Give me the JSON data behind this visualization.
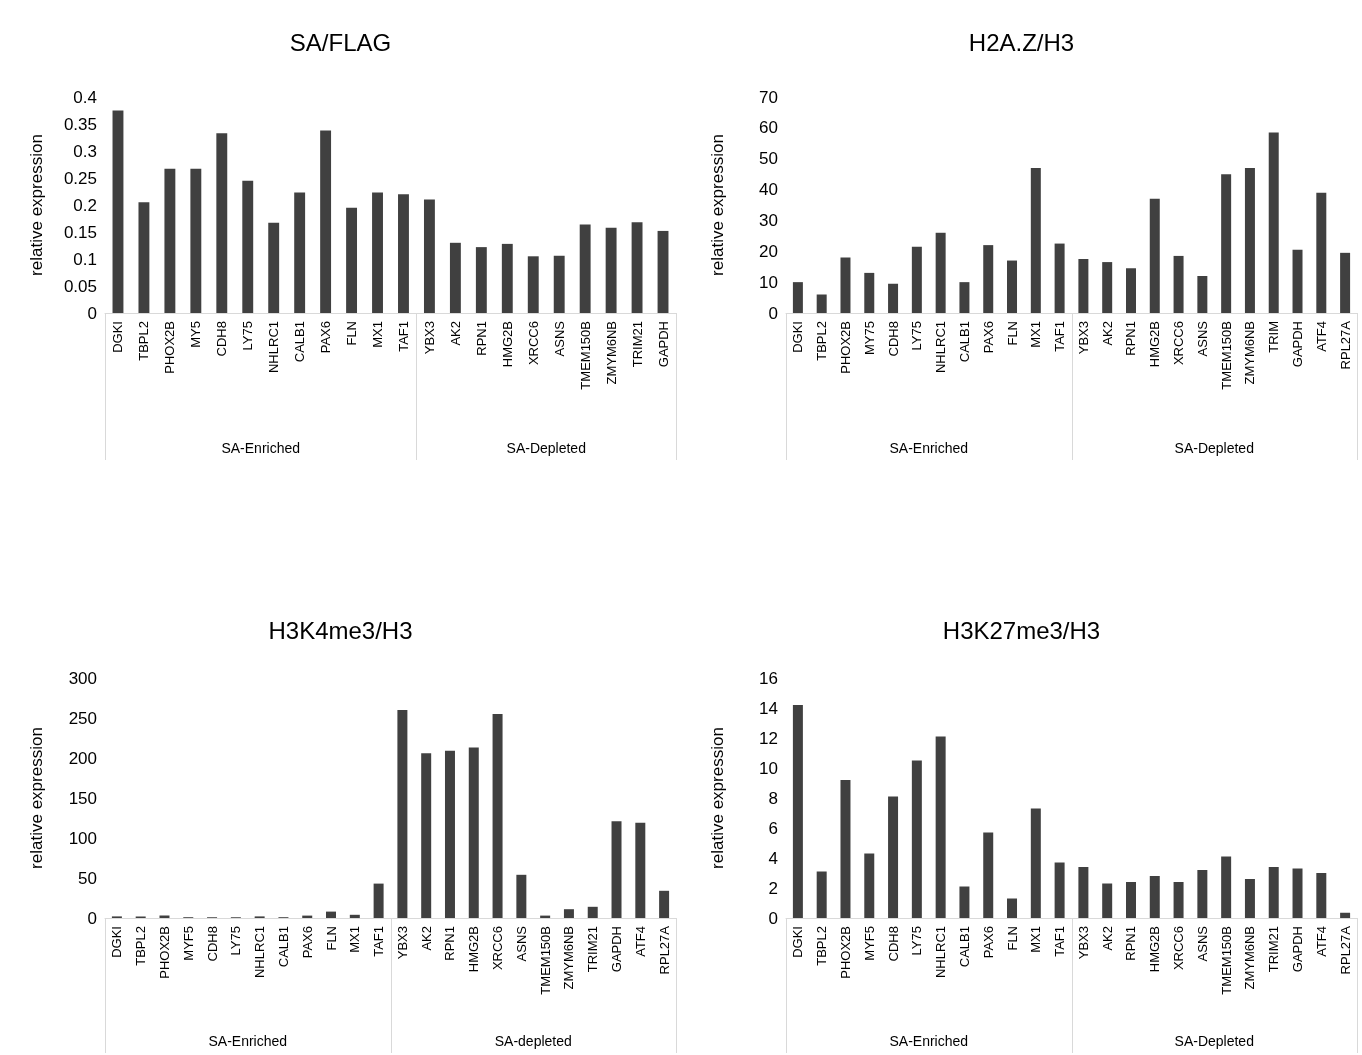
{
  "chart_data": [
    {
      "type": "bar",
      "title": "SA/FLAG",
      "ylabel": "relative expression",
      "categories": [
        "DGKI",
        "TBPL2",
        "PHOX2B",
        "MY5",
        "CDH8",
        "LY75",
        "NHLRC1",
        "CALB1",
        "PAX6",
        "FLN",
        "MX1",
        "TAF1",
        "YBX3",
        "AK2",
        "RPN1",
        "HMG2B",
        "XRCC6",
        "ASNS",
        "TMEM150B",
        "ZMYM6NB",
        "TRIM21",
        "GAPDH"
      ],
      "values": [
        0.375,
        0.205,
        0.267,
        0.267,
        0.333,
        0.245,
        0.167,
        0.223,
        0.338,
        0.195,
        0.223,
        0.22,
        0.21,
        0.13,
        0.122,
        0.128,
        0.105,
        0.106,
        0.164,
        0.158,
        0.168,
        0.152
      ],
      "color": "#404040",
      "ylim": [
        0,
        0.4
      ],
      "yticks": [
        0,
        0.05,
        0.1,
        0.15,
        0.2,
        0.25,
        0.3,
        0.35,
        0.4
      ],
      "grid": false,
      "annotations": [
        "SA-Enriched",
        "SA-Depleted"
      ]
    },
    {
      "type": "bar",
      "title": "H2A.Z/H3",
      "ylabel": "relative expression",
      "categories": [
        "DGKI",
        "TBPL2",
        "PHOX2B",
        "MY75",
        "CDH8",
        "LY75",
        "NHLRC1",
        "CALB1",
        "PAX6",
        "FLN",
        "MX1",
        "TAF1",
        "YBX3",
        "AK2",
        "RPN1",
        "HMG2B",
        "XRCC6",
        "ASNS",
        "TMEM150B",
        "ZMYM6NB",
        "TRIM",
        "GAPDH",
        "ATF4",
        "RPL27A"
      ],
      "values": [
        10,
        6,
        18,
        13,
        9.5,
        21.5,
        26,
        10,
        22,
        17,
        47,
        22.5,
        17.5,
        16.5,
        14.5,
        37,
        18.5,
        12,
        45,
        47,
        58.5,
        20.5,
        39,
        19.5
      ],
      "color": "#404040",
      "ylim": [
        0,
        70
      ],
      "yticks": [
        0,
        10,
        20,
        30,
        40,
        50,
        60,
        70
      ],
      "grid": false,
      "annotations": [
        "SA-Enriched",
        "SA-Depleted"
      ]
    },
    {
      "type": "bar",
      "title": "H3K4me3/H3",
      "ylabel": "relative expression",
      "categories": [
        "DGKI",
        "TBPL2",
        "PHOX2B",
        "MYF5",
        "CDH8",
        "LY75",
        "NHLRC1",
        "CALB1",
        "PAX6",
        "FLN",
        "MX1",
        "TAF1",
        "YBX3",
        "AK2",
        "RPN1",
        "HMG2B",
        "XRCC6",
        "ASNS",
        "TMEM150B",
        "ZMYM6NB",
        "TRIM21",
        "GAPDH",
        "ATF4",
        "RPL27A"
      ],
      "values": [
        2,
        2,
        3,
        1,
        1,
        1,
        2,
        1,
        3,
        8,
        4,
        43,
        260,
        206,
        209,
        213,
        255,
        54,
        3,
        11,
        14,
        121,
        119,
        34
      ],
      "color": "#404040",
      "ylim": [
        0,
        300
      ],
      "yticks": [
        0,
        50,
        100,
        150,
        200,
        250,
        300
      ],
      "grid": false,
      "annotations": [
        "SA-Enriched",
        "SA-depleted"
      ]
    },
    {
      "type": "bar",
      "title": "H3K27me3/H3",
      "ylabel": "relative expression",
      "categories": [
        "DGKI",
        "TBPL2",
        "PHOX2B",
        "MYF5",
        "CDH8",
        "LY75",
        "NHLRC1",
        "CALB1",
        "PAX6",
        "FLN",
        "MX1",
        "TAF1",
        "YBX3",
        "AK2",
        "RPN1",
        "HMG2B",
        "XRCC6",
        "ASNS",
        "TMEM150B",
        "ZMYM6NB",
        "TRIM21",
        "GAPDH",
        "ATF4",
        "RPL27A"
      ],
      "values": [
        14.2,
        3.1,
        9.2,
        4.3,
        8.1,
        10.5,
        12.1,
        2.1,
        5.7,
        1.3,
        7.3,
        3.7,
        3.4,
        2.3,
        2.4,
        2.8,
        2.4,
        3.2,
        4.1,
        2.6,
        3.4,
        3.3,
        3.0,
        0.35
      ],
      "color": "#404040",
      "ylim": [
        0,
        16
      ],
      "yticks": [
        0,
        2,
        4,
        6,
        8,
        10,
        12,
        14,
        16
      ],
      "grid": false,
      "annotations": [
        "SA-Enriched",
        "SA-Depleted"
      ]
    }
  ]
}
